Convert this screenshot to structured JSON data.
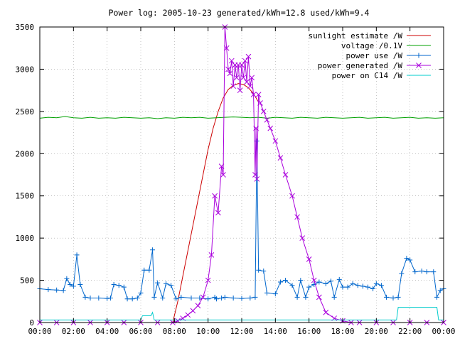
{
  "chart_data": {
    "type": "line",
    "title": "Power log: 2005-10-23 generated/kWh=12.8 used/kWh=9.4",
    "xlabel": "",
    "ylabel": "",
    "x_unit": "hours",
    "xlim": [
      0,
      24
    ],
    "ylim": [
      0,
      3500
    ],
    "x_ticks": [
      0,
      2,
      4,
      6,
      8,
      10,
      12,
      14,
      16,
      18,
      20,
      22,
      24
    ],
    "x_tick_labels": [
      "00:00",
      "02:00",
      "04:00",
      "06:00",
      "08:00",
      "10:00",
      "12:00",
      "14:00",
      "16:00",
      "18:00",
      "20:00",
      "22:00",
      "00:00"
    ],
    "y_ticks": [
      0,
      500,
      1000,
      1500,
      2000,
      2500,
      3000,
      3500
    ],
    "y_tick_labels": [
      "0",
      "500",
      "1000",
      "1500",
      "2000",
      "2500",
      "3000",
      "3500"
    ],
    "grid": true,
    "legend_position": "top-right",
    "series": [
      {
        "name": "sunlight estimate /W",
        "color": "#cc0000",
        "marker": "none",
        "points": [
          [
            7.9,
            0
          ],
          [
            8.2,
            250
          ],
          [
            8.5,
            550
          ],
          [
            8.8,
            850
          ],
          [
            9.1,
            1150
          ],
          [
            9.4,
            1450
          ],
          [
            9.7,
            1750
          ],
          [
            10.0,
            2050
          ],
          [
            10.3,
            2300
          ],
          [
            10.6,
            2500
          ],
          [
            10.9,
            2660
          ],
          [
            11.2,
            2760
          ],
          [
            11.5,
            2810
          ],
          [
            11.8,
            2830
          ],
          [
            12.1,
            2820
          ],
          [
            12.4,
            2780
          ],
          [
            12.7,
            2710
          ],
          [
            13.0,
            2610
          ]
        ]
      },
      {
        "name": "voltage /0.1V",
        "color": "#00a000",
        "marker": "none",
        "points": [
          [
            0,
            2420
          ],
          [
            0.5,
            2430
          ],
          [
            1,
            2425
          ],
          [
            1.5,
            2440
          ],
          [
            2,
            2425
          ],
          [
            2.5,
            2420
          ],
          [
            3,
            2430
          ],
          [
            3.5,
            2420
          ],
          [
            4,
            2425
          ],
          [
            4.5,
            2420
          ],
          [
            5,
            2430
          ],
          [
            5.5,
            2425
          ],
          [
            6,
            2420
          ],
          [
            6.5,
            2425
          ],
          [
            7,
            2415
          ],
          [
            7.5,
            2425
          ],
          [
            8,
            2420
          ],
          [
            8.5,
            2430
          ],
          [
            9,
            2425
          ],
          [
            9.5,
            2430
          ],
          [
            10,
            2420
          ],
          [
            10.5,
            2425
          ],
          [
            11,
            2430
          ],
          [
            11.5,
            2435
          ],
          [
            12,
            2430
          ],
          [
            12.5,
            2425
          ],
          [
            13,
            2430
          ],
          [
            13.5,
            2420
          ],
          [
            14,
            2430
          ],
          [
            14.5,
            2425
          ],
          [
            15,
            2420
          ],
          [
            15.5,
            2430
          ],
          [
            16,
            2425
          ],
          [
            16.5,
            2420
          ],
          [
            17,
            2430
          ],
          [
            17.5,
            2425
          ],
          [
            18,
            2420
          ],
          [
            18.5,
            2425
          ],
          [
            19,
            2430
          ],
          [
            19.5,
            2420
          ],
          [
            20,
            2425
          ],
          [
            20.5,
            2430
          ],
          [
            21,
            2420
          ],
          [
            21.5,
            2425
          ],
          [
            22,
            2430
          ],
          [
            22.5,
            2420
          ],
          [
            23,
            2425
          ],
          [
            23.5,
            2420
          ],
          [
            24,
            2425
          ]
        ]
      },
      {
        "name": "power use /W",
        "color": "#0066cc",
        "marker": "plus",
        "points": [
          [
            0,
            400
          ],
          [
            0.5,
            390
          ],
          [
            1,
            385
          ],
          [
            1.4,
            380
          ],
          [
            1.6,
            520
          ],
          [
            1.8,
            450
          ],
          [
            2,
            430
          ],
          [
            2.2,
            800
          ],
          [
            2.4,
            450
          ],
          [
            2.7,
            300
          ],
          [
            3,
            290
          ],
          [
            3.5,
            290
          ],
          [
            4,
            285
          ],
          [
            4.2,
            290
          ],
          [
            4.4,
            450
          ],
          [
            4.7,
            440
          ],
          [
            5,
            420
          ],
          [
            5.2,
            280
          ],
          [
            5.5,
            280
          ],
          [
            5.8,
            290
          ],
          [
            6.0,
            350
          ],
          [
            6.2,
            620
          ],
          [
            6.5,
            620
          ],
          [
            6.7,
            860
          ],
          [
            6.8,
            300
          ],
          [
            7.0,
            470
          ],
          [
            7.3,
            290
          ],
          [
            7.5,
            460
          ],
          [
            7.8,
            440
          ],
          [
            8.1,
            280
          ],
          [
            8.4,
            300
          ],
          [
            9,
            290
          ],
          [
            9.5,
            290
          ],
          [
            10,
            280
          ],
          [
            10.4,
            300
          ],
          [
            10.5,
            280
          ],
          [
            10.8,
            290
          ],
          [
            11,
            300
          ],
          [
            11.5,
            290
          ],
          [
            12,
            285
          ],
          [
            12.5,
            290
          ],
          [
            12.8,
            300
          ],
          [
            12.9,
            2150
          ],
          [
            13.0,
            620
          ],
          [
            13.3,
            610
          ],
          [
            13.5,
            350
          ],
          [
            14,
            340
          ],
          [
            14.3,
            480
          ],
          [
            14.6,
            500
          ],
          [
            15,
            440
          ],
          [
            15.3,
            300
          ],
          [
            15.5,
            500
          ],
          [
            15.8,
            300
          ],
          [
            16,
            420
          ],
          [
            16.3,
            450
          ],
          [
            16.6,
            480
          ],
          [
            17,
            460
          ],
          [
            17.3,
            490
          ],
          [
            17.5,
            300
          ],
          [
            17.8,
            510
          ],
          [
            18,
            420
          ],
          [
            18.3,
            420
          ],
          [
            18.6,
            460
          ],
          [
            18.9,
            440
          ],
          [
            19.2,
            430
          ],
          [
            19.5,
            420
          ],
          [
            19.8,
            400
          ],
          [
            20,
            460
          ],
          [
            20.3,
            440
          ],
          [
            20.6,
            300
          ],
          [
            21,
            290
          ],
          [
            21.3,
            300
          ],
          [
            21.5,
            580
          ],
          [
            21.8,
            760
          ],
          [
            22.0,
            740
          ],
          [
            22.3,
            600
          ],
          [
            22.7,
            610
          ],
          [
            23.0,
            600
          ],
          [
            23.4,
            600
          ],
          [
            23.6,
            300
          ],
          [
            23.8,
            380
          ],
          [
            24,
            400
          ]
        ]
      },
      {
        "name": "power generated /W",
        "color": "#aa00dd",
        "marker": "cross",
        "points": [
          [
            0,
            0
          ],
          [
            1,
            0
          ],
          [
            2,
            0
          ],
          [
            3,
            0
          ],
          [
            4,
            0
          ],
          [
            5,
            0
          ],
          [
            6,
            0
          ],
          [
            7,
            0
          ],
          [
            7.9,
            0
          ],
          [
            8.2,
            20
          ],
          [
            8.5,
            50
          ],
          [
            8.8,
            90
          ],
          [
            9.1,
            140
          ],
          [
            9.4,
            200
          ],
          [
            9.7,
            300
          ],
          [
            10.0,
            500
          ],
          [
            10.2,
            800
          ],
          [
            10.4,
            1500
          ],
          [
            10.6,
            1300
          ],
          [
            10.8,
            1850
          ],
          [
            10.9,
            1750
          ],
          [
            11.0,
            3500
          ],
          [
            11.1,
            3250
          ],
          [
            11.2,
            3000
          ],
          [
            11.3,
            2950
          ],
          [
            11.4,
            3100
          ],
          [
            11.5,
            2800
          ],
          [
            11.6,
            3050
          ],
          [
            11.7,
            2900
          ],
          [
            11.8,
            3050
          ],
          [
            11.9,
            2750
          ],
          [
            12.0,
            3050
          ],
          [
            12.1,
            2900
          ],
          [
            12.2,
            3100
          ],
          [
            12.3,
            2850
          ],
          [
            12.4,
            3150
          ],
          [
            12.5,
            2800
          ],
          [
            12.6,
            2900
          ],
          [
            12.7,
            2700
          ],
          [
            12.8,
            1750
          ],
          [
            12.85,
            2300
          ],
          [
            12.9,
            1700
          ],
          [
            13.0,
            2700
          ],
          [
            13.1,
            2600
          ],
          [
            13.3,
            2500
          ],
          [
            13.5,
            2400
          ],
          [
            13.7,
            2300
          ],
          [
            14.0,
            2150
          ],
          [
            14.3,
            1950
          ],
          [
            14.6,
            1750
          ],
          [
            15.0,
            1500
          ],
          [
            15.3,
            1250
          ],
          [
            15.6,
            1000
          ],
          [
            16.0,
            750
          ],
          [
            16.3,
            500
          ],
          [
            16.6,
            300
          ],
          [
            17.0,
            120
          ],
          [
            17.5,
            50
          ],
          [
            18.0,
            20
          ],
          [
            18.5,
            0
          ],
          [
            19,
            0
          ],
          [
            20,
            0
          ],
          [
            21,
            0
          ],
          [
            22,
            0
          ],
          [
            23,
            0
          ],
          [
            24,
            0
          ]
        ]
      },
      {
        "name": "power on C14 /W",
        "color": "#00cccc",
        "marker": "none",
        "points": [
          [
            0,
            30
          ],
          [
            6.0,
            30
          ],
          [
            6.1,
            80
          ],
          [
            6.6,
            80
          ],
          [
            6.7,
            120
          ],
          [
            6.8,
            30
          ],
          [
            21.2,
            30
          ],
          [
            21.3,
            180
          ],
          [
            23.6,
            180
          ],
          [
            23.7,
            30
          ],
          [
            24,
            30
          ]
        ]
      }
    ]
  }
}
